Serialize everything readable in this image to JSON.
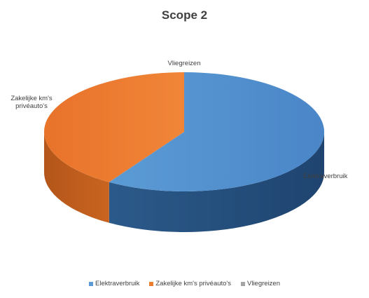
{
  "chart_data": {
    "type": "pie",
    "title": "Scope 2",
    "categories": [
      "Elektraverbruik",
      "Zakelijke km's privéauto's",
      "Vliegreizen"
    ],
    "values": [
      59,
      41,
      0
    ],
    "colors": [
      "#5b9bd5",
      "#ed7d31",
      "#a5a5a5"
    ],
    "side_colors": [
      "#2f5e8e",
      "#b4561a",
      "#6e6e6e"
    ],
    "slice_labels": [
      "Elektraverbruik",
      "Zakelijke km's privéauto's",
      "Vliegreizen"
    ],
    "legend_position": "bottom",
    "style": "3d"
  }
}
